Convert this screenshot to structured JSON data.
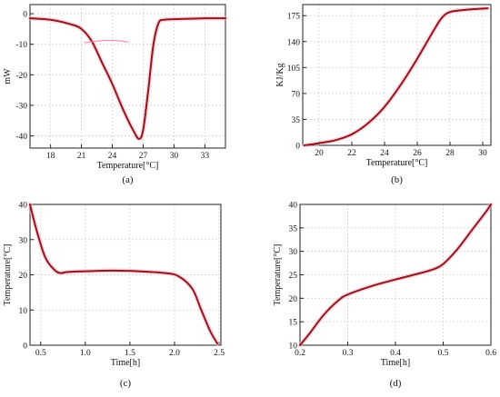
{
  "chart_data": [
    {
      "type": "line",
      "panel_label": "(a)",
      "xlabel": "Temperature[°C]",
      "ylabel": "mW",
      "xlim": [
        16,
        35
      ],
      "ylim": [
        -44,
        3
      ],
      "xticks": [
        18,
        21,
        24,
        27,
        30,
        33
      ],
      "yticks": [
        0,
        -10,
        -20,
        -30,
        -40
      ],
      "grid": true,
      "series": [
        {
          "color": "#8b1a1a",
          "x": [
            16,
            18,
            20,
            21,
            22,
            23,
            24,
            25,
            26,
            26.6,
            27,
            27.5,
            28,
            28.5,
            29,
            30,
            31,
            32,
            33,
            34,
            35
          ],
          "y": [
            -1.5,
            -2,
            -3.5,
            -5,
            -9,
            -16,
            -23,
            -31,
            -38,
            -41,
            -38,
            -25,
            -10,
            -3,
            -2,
            -1.8,
            -1.7,
            -1.6,
            -1.5,
            -1.5,
            -1.5
          ]
        },
        {
          "color": "#ff88aa",
          "x": [
            21.3,
            23,
            24.5,
            25.5
          ],
          "y": [
            -9.5,
            -8.8,
            -8.8,
            -9.3
          ]
        }
      ]
    },
    {
      "type": "line",
      "panel_label": "(b)",
      "xlabel": "Temperature[°C]",
      "ylabel": "KJ/Kg",
      "xlim": [
        19,
        30.5
      ],
      "ylim": [
        0,
        190
      ],
      "xticks": [
        20,
        22,
        24,
        26,
        28,
        30
      ],
      "yticks": [
        0,
        35,
        70,
        105,
        140,
        175
      ],
      "grid": true,
      "series": [
        {
          "color": "#8b1a1a",
          "x": [
            19.1,
            20,
            21,
            22,
            23,
            24,
            25,
            26,
            27,
            27.5,
            28,
            29,
            30.3
          ],
          "y": [
            0,
            3,
            7,
            15,
            30,
            52,
            82,
            117,
            155,
            172,
            180,
            183,
            185
          ]
        }
      ]
    },
    {
      "type": "line",
      "panel_label": "(c)",
      "xlabel": "Time[h]",
      "ylabel": "Temperature[°C]",
      "xlim": [
        0.38,
        2.52
      ],
      "ylim": [
        0,
        40
      ],
      "xticks": [
        0.5,
        1.0,
        1.5,
        2.0,
        2.5
      ],
      "xtick_labels": [
        "0.5",
        "1.0",
        "1.5",
        "2.0",
        "2.5"
      ],
      "yticks": [
        0,
        10,
        20,
        30,
        40
      ],
      "grid": true,
      "series": [
        {
          "color": "#8b1a1a",
          "x": [
            0.38,
            0.45,
            0.55,
            0.65,
            0.72,
            0.8,
            1.0,
            1.3,
            1.6,
            1.9,
            2.05,
            2.2,
            2.3,
            2.4,
            2.48
          ],
          "y": [
            40,
            33,
            25,
            21.5,
            20.5,
            20.8,
            21,
            21.2,
            21,
            20.5,
            19.5,
            16,
            10,
            4,
            0.5
          ]
        }
      ]
    },
    {
      "type": "line",
      "panel_label": "(d)",
      "xlabel": "Time[h]",
      "ylabel": "Temperature[°C]",
      "xlim": [
        0.2,
        0.6
      ],
      "ylim": [
        10,
        40
      ],
      "xticks": [
        0.2,
        0.3,
        0.4,
        0.5,
        0.6
      ],
      "yticks": [
        10,
        15,
        20,
        25,
        30,
        35,
        40
      ],
      "grid": true,
      "series": [
        {
          "color": "#8b1a1a",
          "x": [
            0.2,
            0.22,
            0.25,
            0.28,
            0.3,
            0.35,
            0.4,
            0.45,
            0.48,
            0.5,
            0.53,
            0.56,
            0.59,
            0.6
          ],
          "y": [
            10,
            12.5,
            16.5,
            19.5,
            20.8,
            22.6,
            24,
            25.3,
            26.2,
            27.3,
            30.5,
            34.5,
            38.5,
            40
          ]
        }
      ]
    }
  ]
}
